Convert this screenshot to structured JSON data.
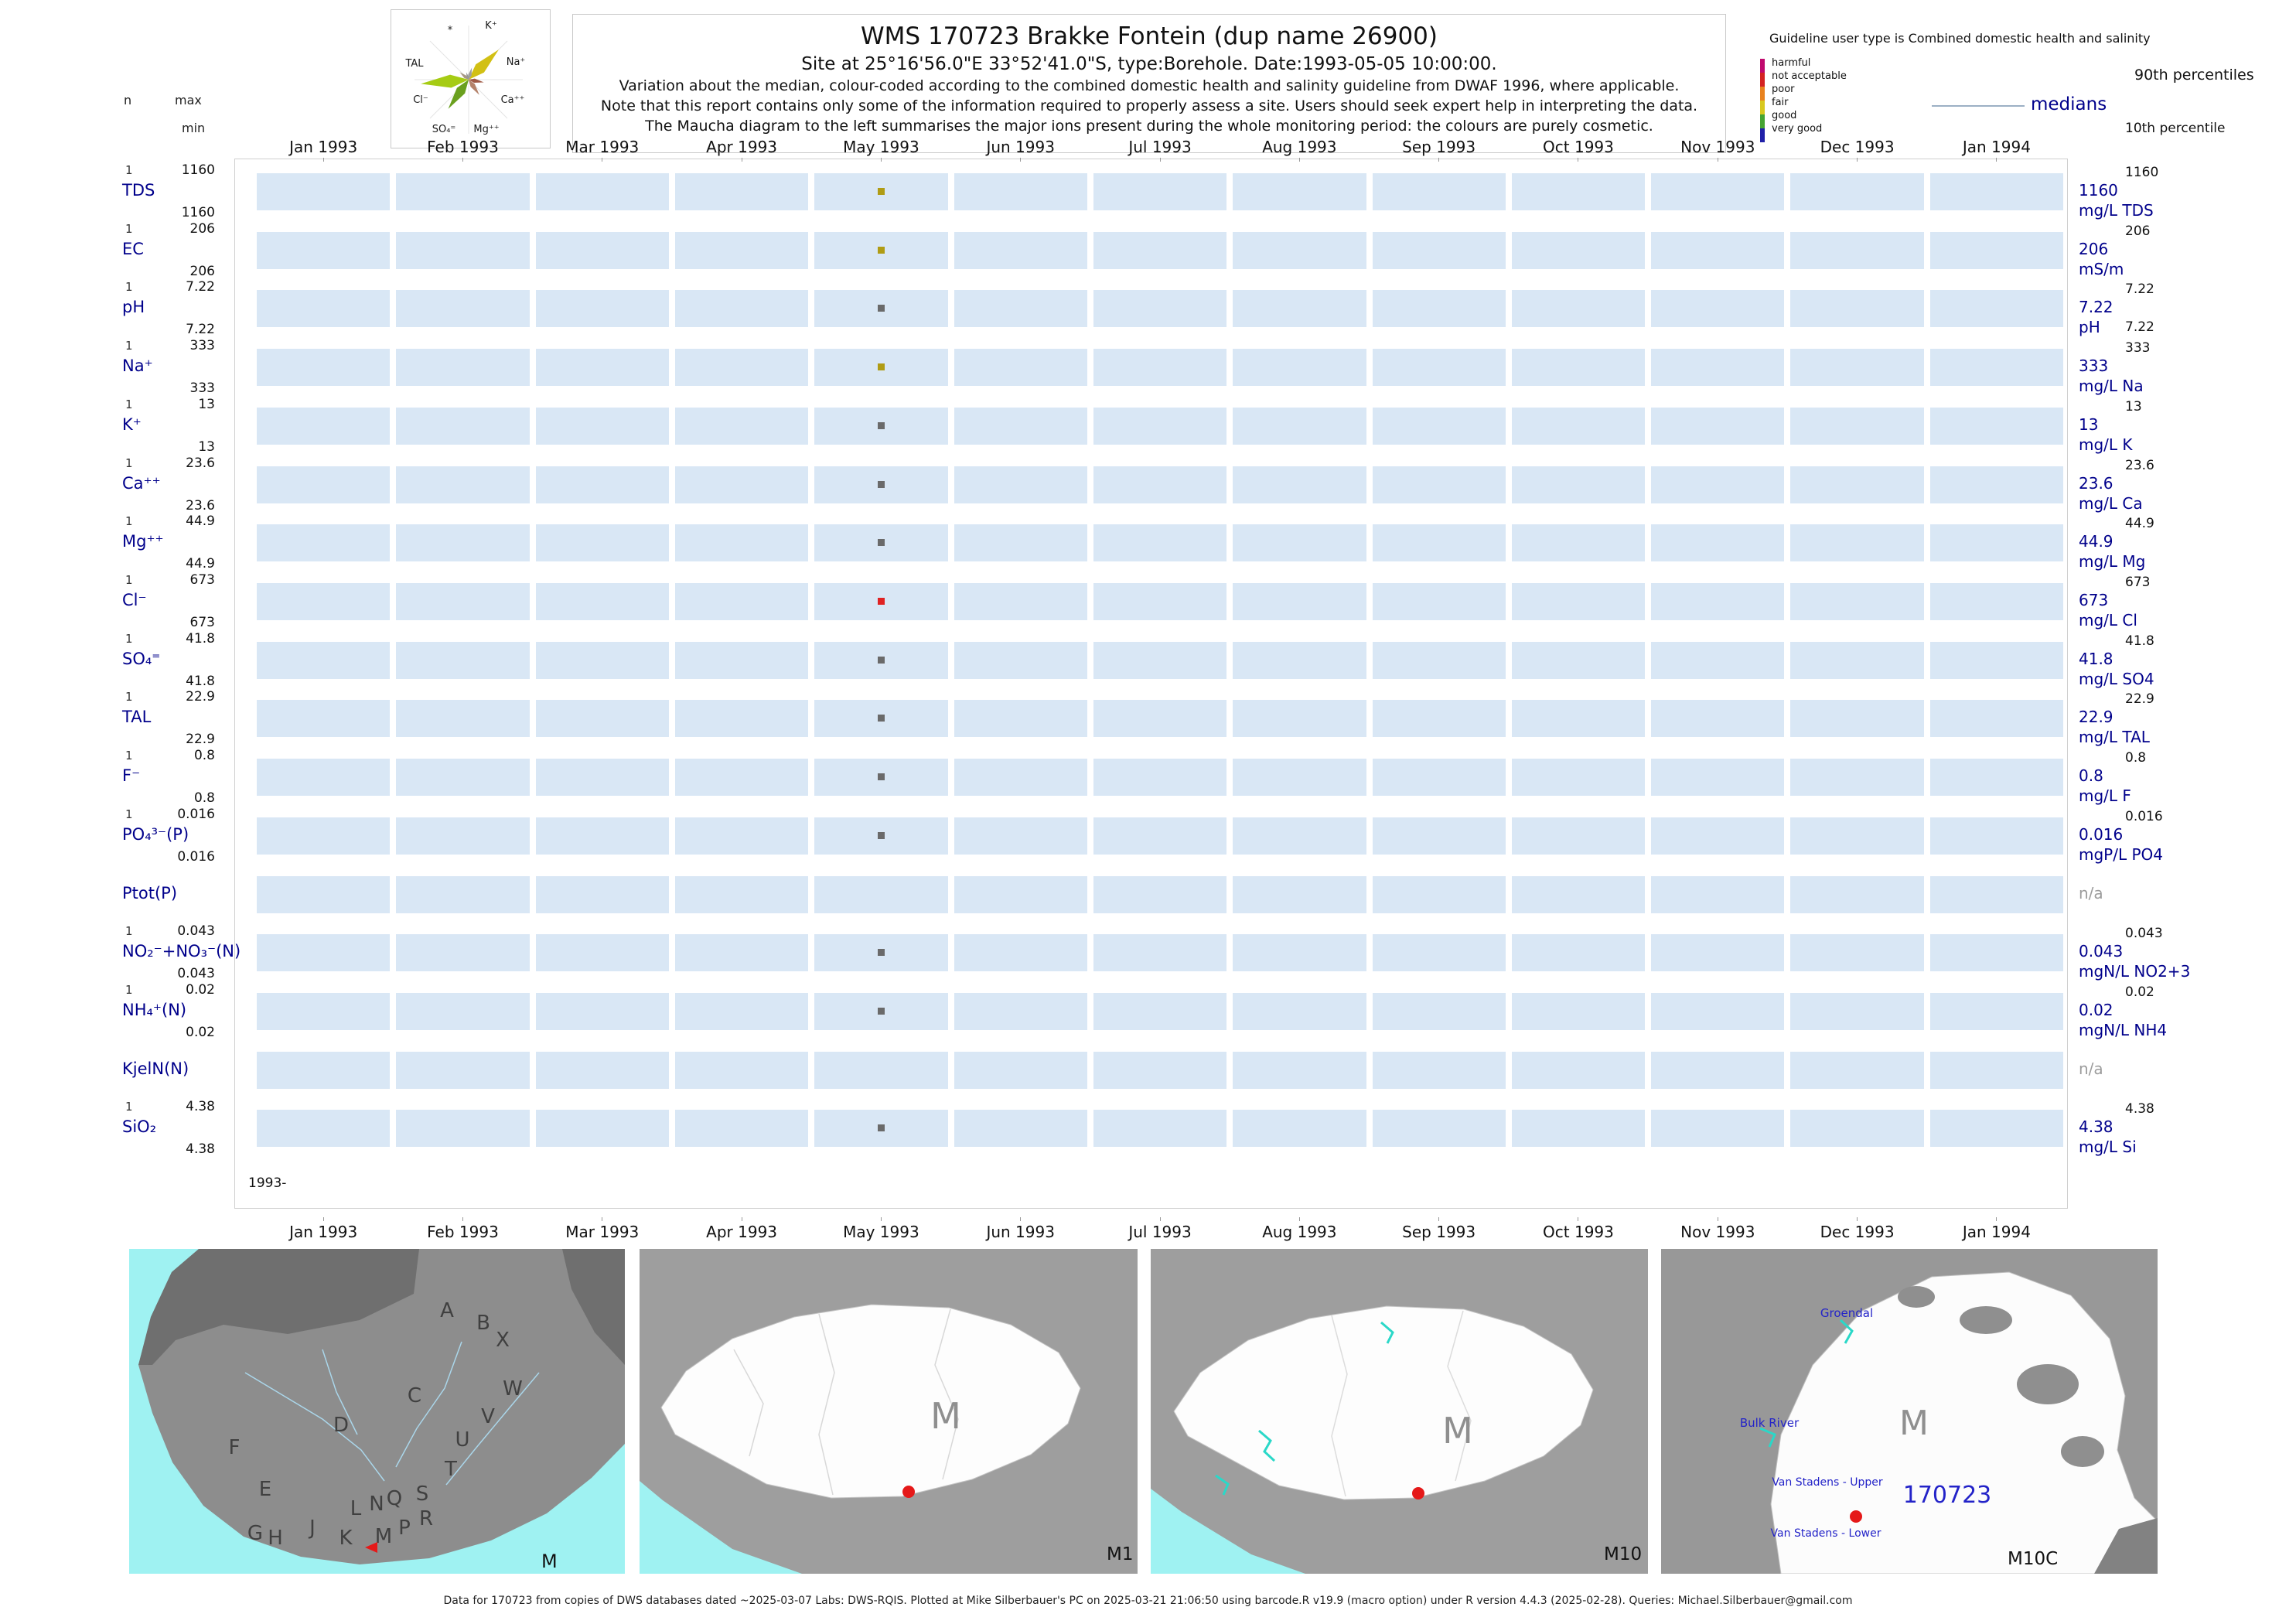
{
  "header": {
    "title": "WMS 170723  Brakke Fontein (dup name 26900)",
    "subtitle": "Site at 25°16'56.0\"E 33°52'41.0\"S, type:Borehole. Date:1993-05-05 10:00:00.",
    "note1": "Variation about the median,  colour-coded according to the combined domestic health and salinity guideline from DWAF 1996, where applicable.",
    "note2": "Note that this report contains only some of the information required to properly assess a site. Users should seek expert help in interpreting the data.",
    "note3": "The Maucha diagram to the left summarises the major ions present during the whole monitoring period: the colours are purely cosmetic."
  },
  "axis_header": {
    "n": "n",
    "max": "max",
    "min": "min"
  },
  "legend": {
    "guideline_title": "Guideline user type is Combined domestic health and salinity",
    "scale_labels": [
      "harmful",
      "not acceptable",
      "poor",
      "fair",
      "good",
      "very good"
    ],
    "colors": [
      "#c00a6e",
      "#d42222",
      "#e8821e",
      "#d8c81e",
      "#46a432",
      "#2020a8"
    ],
    "p90_label": "90th percentiles",
    "median_label": "medians",
    "p10_label": "10th percentile"
  },
  "maucha": {
    "labels": [
      "*",
      "K⁺",
      "TAL",
      "Na⁺",
      "Cl⁻",
      "Ca⁺⁺",
      "SO₄⁼",
      "Mg⁺⁺"
    ]
  },
  "axis": {
    "months": [
      "Jan 1993",
      "Feb 1993",
      "Mar 1993",
      "Apr 1993",
      "May 1993",
      "Jun 1993",
      "Jul 1993",
      "Aug 1993",
      "Sep 1993",
      "Oct 1993",
      "Nov 1993",
      "Dec 1993",
      "Jan 1994"
    ],
    "year_start_label": "1993-"
  },
  "rows": [
    {
      "n": "1",
      "max": "1160",
      "min": "1160",
      "param": "TDS",
      "median": "1160",
      "p90": "1160",
      "unit": "mg/L TDS",
      "dot": "#b09c14"
    },
    {
      "n": "1",
      "max": "206",
      "min": "206",
      "param": "EC",
      "median": "206",
      "p90": "206",
      "unit": "mS/m",
      "dot": "#b09c14"
    },
    {
      "n": "1",
      "max": "7.22",
      "min": "7.22",
      "param": "pH",
      "median": "7.22",
      "p90": "7.22",
      "p10": "7.22",
      "unit": "pH",
      "dot": "#6a6a6a"
    },
    {
      "n": "1",
      "max": "333",
      "min": "333",
      "param": "Na⁺",
      "median": "333",
      "p90": "333",
      "unit": "mg/L Na",
      "dot": "#b09c14"
    },
    {
      "n": "1",
      "max": "13",
      "min": "13",
      "param": "K⁺",
      "median": "13",
      "p90": "13",
      "unit": "mg/L K",
      "dot": "#6a6a6a"
    },
    {
      "n": "1",
      "max": "23.6",
      "min": "23.6",
      "param": "Ca⁺⁺",
      "median": "23.6",
      "p90": "23.6",
      "unit": "mg/L Ca",
      "dot": "#6a6a6a"
    },
    {
      "n": "1",
      "max": "44.9",
      "min": "44.9",
      "param": "Mg⁺⁺",
      "median": "44.9",
      "p90": "44.9",
      "unit": "mg/L Mg",
      "dot": "#6a6a6a"
    },
    {
      "n": "1",
      "max": "673",
      "min": "673",
      "param": "Cl⁻",
      "median": "673",
      "p90": "673",
      "unit": "mg/L Cl",
      "dot": "#e02222"
    },
    {
      "n": "1",
      "max": "41.8",
      "min": "41.8",
      "param": "SO₄⁼",
      "median": "41.8",
      "p90": "41.8",
      "unit": "mg/L SO4",
      "dot": "#6a6a6a"
    },
    {
      "n": "1",
      "max": "22.9",
      "min": "22.9",
      "param": "TAL",
      "median": "22.9",
      "p90": "22.9",
      "unit": "mg/L TAL",
      "dot": "#6a6a6a"
    },
    {
      "n": "1",
      "max": "0.8",
      "min": "0.8",
      "param": "F⁻",
      "median": "0.8",
      "p90": "0.8",
      "unit": "mg/L F",
      "dot": "#6a6a6a"
    },
    {
      "n": "1",
      "max": "0.016",
      "min": "0.016",
      "param": "PO₄³⁻(P)",
      "median": "0.016",
      "p90": "0.016",
      "unit": "mgP/L PO4",
      "dot": "#6a6a6a"
    },
    {
      "n": "",
      "max": "",
      "min": "",
      "param": "Ptot(P)",
      "median": "n/a",
      "p90": "",
      "unit": "",
      "dot": null
    },
    {
      "n": "1",
      "max": "0.043",
      "min": "0.043",
      "param": "NO₂⁻+NO₃⁻(N)",
      "median": "0.043",
      "p90": "0.043",
      "unit": "mgN/L NO2+3",
      "dot": "#6a6a6a"
    },
    {
      "n": "1",
      "max": "0.02",
      "min": "0.02",
      "param": "NH₄⁺(N)",
      "median": "0.02",
      "p90": "0.02",
      "unit": "mgN/L NH4",
      "dot": "#6a6a6a"
    },
    {
      "n": "",
      "max": "",
      "min": "",
      "param": "KjelN(N)",
      "median": "n/a",
      "p90": "",
      "unit": "",
      "dot": null
    },
    {
      "n": "1",
      "max": "4.38",
      "min": "4.38",
      "param": "SiO₂",
      "median": "4.38",
      "p90": "4.38",
      "unit": "mg/L Si",
      "dot": "#6a6a6a"
    }
  ],
  "maps": {
    "panel1": {
      "corner_label": "M",
      "letters": [
        "A",
        "B",
        "X",
        "C",
        "W",
        "D",
        "V",
        "F",
        "U",
        "T",
        "E",
        "S",
        "L",
        "N",
        "Q",
        "R",
        "G",
        "H",
        "J",
        "K",
        "P",
        "M"
      ]
    },
    "panel2": {
      "region_label": "M",
      "corner_label": "M1"
    },
    "panel3": {
      "region_label": "M",
      "corner_label": "M10"
    },
    "panel4": {
      "region_label": "M",
      "corner_label": "M10C",
      "site_label": "170723",
      "place_labels": [
        "Groendal",
        "Bulk River",
        "Van Stadens - Upper",
        "Van Stadens - Lower"
      ]
    }
  },
  "footer": {
    "text": "Data for 170723 from copies of DWS databases dated ~2025-03-07 Labs: DWS-RQIS. Plotted at Mike Silberbauer's PC on 2025-03-21 21:06:50 using barcode.R v19.9 (macro option) under R version 4.4.3 (2025-02-28). Queries: Michael.Silberbauer@gmail.com"
  },
  "chart_data": {
    "type": "scatter",
    "title": "WMS 170723 Brakke Fontein (dup name 26900)",
    "sample_date": "1993-05-05 10:00:00",
    "data_month": "May 1993",
    "x_tick_labels": [
      "Jan 1993",
      "Feb 1993",
      "Mar 1993",
      "Apr 1993",
      "May 1993",
      "Jun 1993",
      "Jul 1993",
      "Aug 1993",
      "Sep 1993",
      "Oct 1993",
      "Nov 1993",
      "Dec 1993",
      "Jan 1994"
    ],
    "series": [
      {
        "param": "TDS",
        "unit": "mg/L TDS",
        "n": 1,
        "min": 1160,
        "max": 1160,
        "median": 1160,
        "p90": 1160,
        "guideline_class": "fair"
      },
      {
        "param": "EC",
        "unit": "mS/m",
        "n": 1,
        "min": 206,
        "max": 206,
        "median": 206,
        "p90": 206,
        "guideline_class": "fair"
      },
      {
        "param": "pH",
        "unit": "pH",
        "n": 1,
        "min": 7.22,
        "max": 7.22,
        "median": 7.22,
        "p90": 7.22,
        "p10": 7.22,
        "guideline_class": "none"
      },
      {
        "param": "Na",
        "unit": "mg/L Na",
        "n": 1,
        "min": 333,
        "max": 333,
        "median": 333,
        "p90": 333,
        "guideline_class": "fair"
      },
      {
        "param": "K",
        "unit": "mg/L K",
        "n": 1,
        "min": 13,
        "max": 13,
        "median": 13,
        "p90": 13,
        "guideline_class": "none"
      },
      {
        "param": "Ca",
        "unit": "mg/L Ca",
        "n": 1,
        "min": 23.6,
        "max": 23.6,
        "median": 23.6,
        "p90": 23.6,
        "guideline_class": "none"
      },
      {
        "param": "Mg",
        "unit": "mg/L Mg",
        "n": 1,
        "min": 44.9,
        "max": 44.9,
        "median": 44.9,
        "p90": 44.9,
        "guideline_class": "none"
      },
      {
        "param": "Cl",
        "unit": "mg/L Cl",
        "n": 1,
        "min": 673,
        "max": 673,
        "median": 673,
        "p90": 673,
        "guideline_class": "not acceptable"
      },
      {
        "param": "SO4",
        "unit": "mg/L SO4",
        "n": 1,
        "min": 41.8,
        "max": 41.8,
        "median": 41.8,
        "p90": 41.8,
        "guideline_class": "none"
      },
      {
        "param": "TAL",
        "unit": "mg/L TAL",
        "n": 1,
        "min": 22.9,
        "max": 22.9,
        "median": 22.9,
        "p90": 22.9,
        "guideline_class": "none"
      },
      {
        "param": "F",
        "unit": "mg/L F",
        "n": 1,
        "min": 0.8,
        "max": 0.8,
        "median": 0.8,
        "p90": 0.8,
        "guideline_class": "none"
      },
      {
        "param": "PO4(P)",
        "unit": "mgP/L PO4",
        "n": 1,
        "min": 0.016,
        "max": 0.016,
        "median": 0.016,
        "p90": 0.016,
        "guideline_class": "none"
      },
      {
        "param": "Ptot(P)",
        "median": null
      },
      {
        "param": "NO2+NO3(N)",
        "unit": "mgN/L NO2+3",
        "n": 1,
        "min": 0.043,
        "max": 0.043,
        "median": 0.043,
        "p90": 0.043,
        "guideline_class": "none"
      },
      {
        "param": "NH4(N)",
        "unit": "mgN/L NH4",
        "n": 1,
        "min": 0.02,
        "max": 0.02,
        "median": 0.02,
        "p90": 0.02,
        "guideline_class": "none"
      },
      {
        "param": "KjelN(N)",
        "median": null
      },
      {
        "param": "SiO2",
        "unit": "mg/L Si",
        "n": 1,
        "min": 4.38,
        "max": 4.38,
        "median": 4.38,
        "p90": 4.38,
        "guideline_class": "none"
      }
    ]
  }
}
